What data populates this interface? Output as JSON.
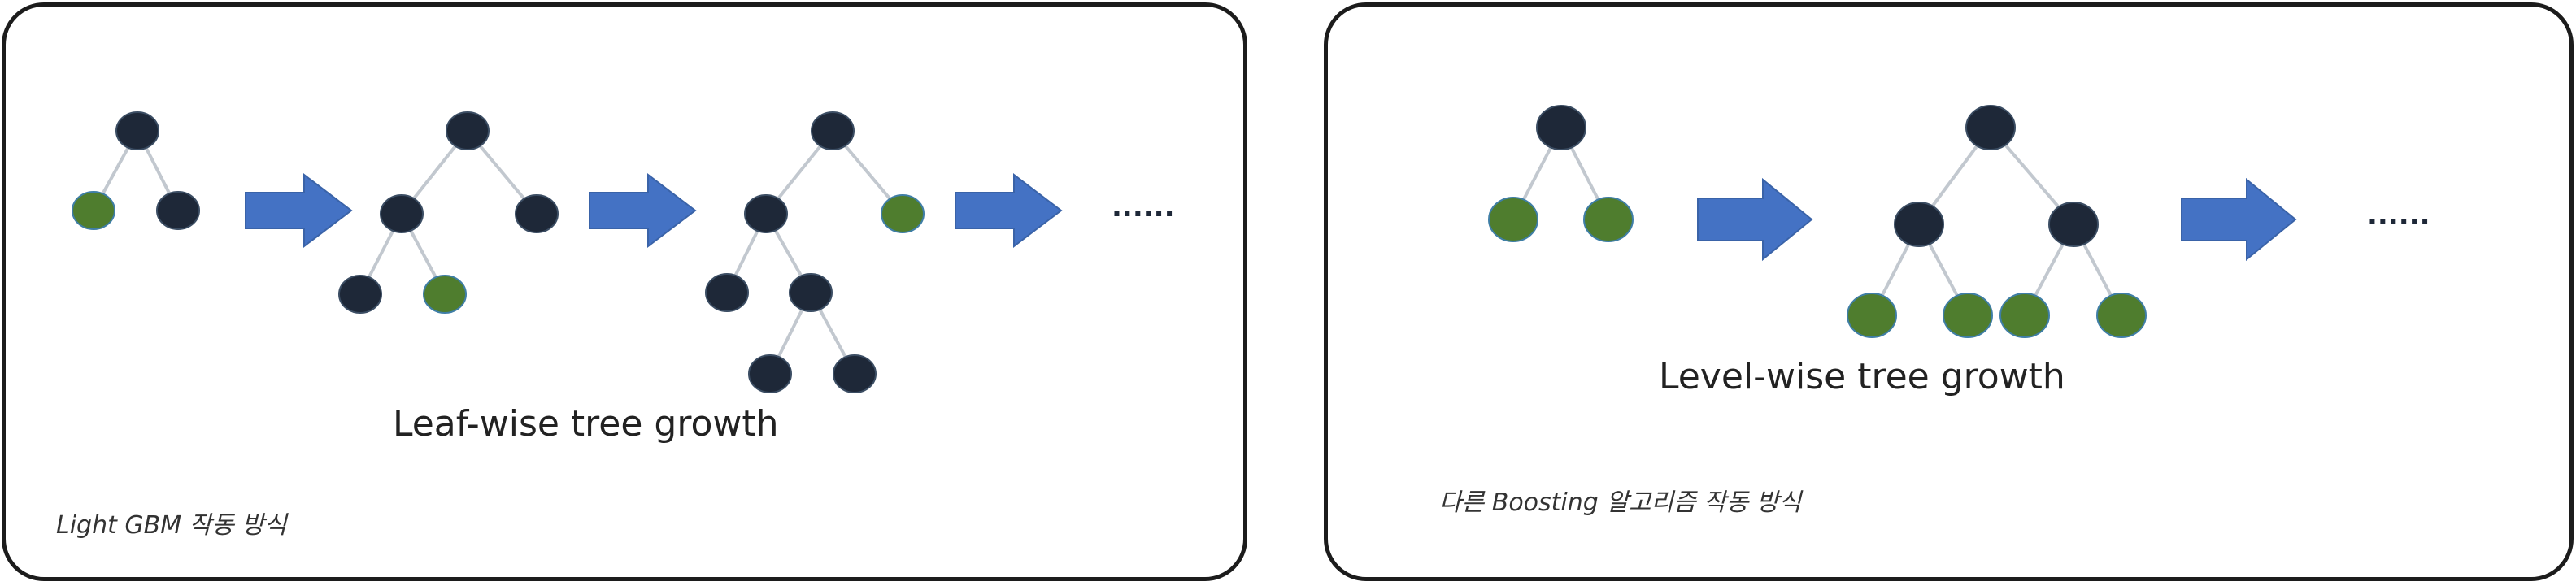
{
  "left_panel": {
    "title": "Leaf-wise tree growth",
    "caption": "Light GBM 작동 방식",
    "continuation": "......"
  },
  "right_panel": {
    "title": "Level-wise tree growth",
    "caption": "다른 Boosting 알고리즘 작동 방식",
    "continuation": "......"
  },
  "colors": {
    "dark_node": "#1e2838",
    "green_node": "#4f7d2e",
    "arrow": "#4472c4",
    "edge": "#c2c8cf"
  }
}
